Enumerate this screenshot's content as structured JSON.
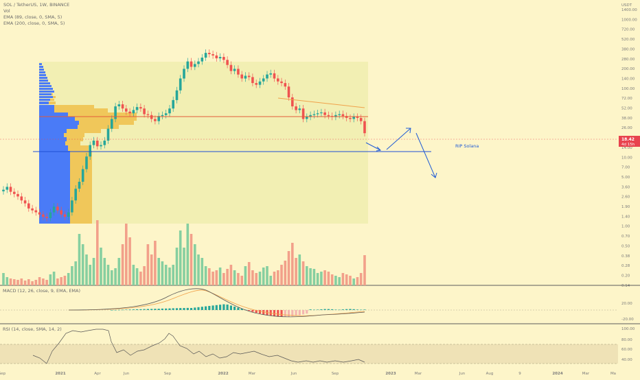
{
  "header": {
    "symbol_line": "SOL / TetherUS, 1W, BINANCE",
    "vol_label": "Vol",
    "ema1_label": "EMA (89, close, 0, SMA, 5)",
    "ema2_label": "EMA (200, close, 0, SMA, 5)"
  },
  "price_axis": {
    "currency": "USDT",
    "labels": [
      "1400.00",
      "1000.00",
      "720.00",
      "520.00",
      "380.00",
      "280.00",
      "200.00",
      "140.00",
      "100.00",
      "72.00",
      "52.00",
      "38.00",
      "26.00",
      "18.00",
      "14.00",
      "10.00",
      "7.00",
      "5.00",
      "3.60",
      "2.60",
      "1.90",
      "1.40",
      "1.00",
      "0.70",
      "0.50",
      "0.38",
      "0.28",
      "0.20",
      "0.14"
    ],
    "last_price": "18.42",
    "countdown": "4d 15h",
    "last_price_color": "#e8434e"
  },
  "time_axis": {
    "labels": [
      "Sep",
      "2021",
      "Apr",
      "Jun",
      "Sep",
      "2022",
      "Mar",
      "Jun",
      "Sep",
      "2023",
      "Mar",
      "Jun",
      "Aug",
      "9",
      "2024",
      "Mar",
      "Ma"
    ]
  },
  "annotation": {
    "text": "RIP Solana",
    "color": "#1f5bd6"
  },
  "macd": {
    "label": "MACD (12, 26, close, 9, EMA, EMA)",
    "axis_labels": [
      "20.00",
      "-20.00"
    ]
  },
  "rsi": {
    "label": "RSI (14, close, SMA, 14, 2)",
    "axis_labels": [
      "100.00",
      "80.00",
      "60.00",
      "40.00"
    ]
  },
  "colors": {
    "up": "#26a69a",
    "down": "#ef5350",
    "support_line": "#1f4fd6",
    "resistance_line": "#e35b3a",
    "trend_line": "#f0a14a",
    "profile_blue": "#4a7bf7",
    "profile_yellow": "#f0c75a"
  },
  "chart_data": {
    "type": "candlestick",
    "title": "SOL / TetherUS, 1W, BINANCE",
    "price_scale": "log",
    "ylim": [
      0.1,
      1400
    ],
    "support_level": 11.9,
    "resistance_level": 37,
    "candles_close_sample": [
      {
        "x": "Sep 2020",
        "close": 3.1
      },
      {
        "x": "2021",
        "close": 1.6
      },
      {
        "x": "Feb 2021",
        "close": 9
      },
      {
        "x": "Apr 2021",
        "close": 45
      },
      {
        "x": "Jun 2021",
        "close": 34
      },
      {
        "x": "Aug 2021",
        "close": 75
      },
      {
        "x": "Sep 2021",
        "close": 160
      },
      {
        "x": "Nov 2021",
        "close": 240
      },
      {
        "x": "2022",
        "close": 170
      },
      {
        "x": "Mar 2022",
        "close": 90
      },
      {
        "x": "Apr 2022",
        "close": 130
      },
      {
        "x": "Jun 2022",
        "close": 34
      },
      {
        "x": "Sep 2022",
        "close": 33
      },
      {
        "x": "Nov 2022",
        "close": 18.42
      }
    ],
    "annotations": [
      "RIP Solana"
    ]
  }
}
